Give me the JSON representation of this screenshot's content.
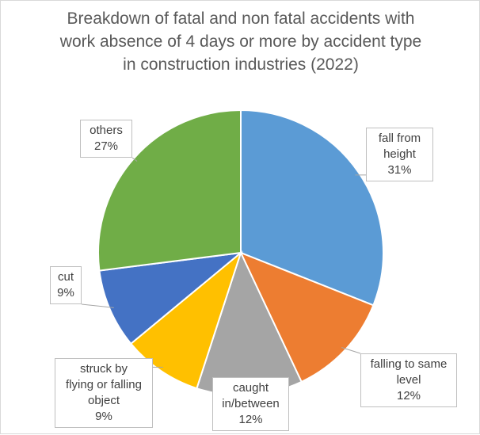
{
  "chart_data": {
    "type": "pie",
    "title_lines": [
      "Breakdown of fatal and non fatal accidents with",
      "work absence of 4 days or more by accident type",
      "in construction industries (2022)"
    ],
    "start_angle_deg": 0,
    "direction": "clockwise",
    "legend": "none",
    "slices": [
      {
        "category_lines": [
          "fall from",
          "height"
        ],
        "value": 31,
        "percent_label": "31%",
        "color": "#5b9bd5"
      },
      {
        "category_lines": [
          "falling to same",
          "level"
        ],
        "value": 12,
        "percent_label": "12%",
        "color": "#ed7d31"
      },
      {
        "category_lines": [
          "caught",
          "in/between"
        ],
        "value": 12,
        "percent_label": "12%",
        "color": "#a5a5a5"
      },
      {
        "category_lines": [
          "struck by",
          "flying or falling",
          "object"
        ],
        "value": 9,
        "percent_label": "9%",
        "color": "#ffc000"
      },
      {
        "category_lines": [
          "cut"
        ],
        "value": 9,
        "percent_label": "9%",
        "color": "#4472c4"
      },
      {
        "category_lines": [
          "others"
        ],
        "value": 27,
        "percent_label": "27%",
        "color": "#70ad47"
      }
    ]
  }
}
